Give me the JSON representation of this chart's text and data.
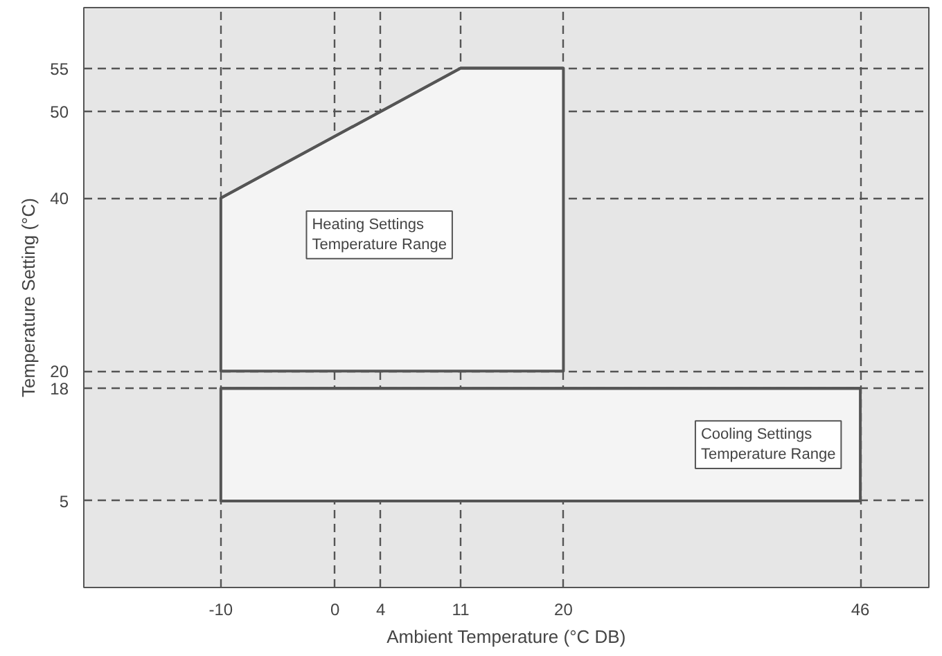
{
  "chart_data": {
    "type": "line",
    "xlabel": "Ambient Temperature (°C DB)",
    "ylabel": "Temperature Setting (°C)",
    "series": [
      {
        "x": [
          -10,
          11,
          20
        ],
        "values": [
          40,
          55,
          55
        ],
        "lower": [
          20,
          20,
          20
        ],
        "upper": [
          40,
          55,
          55
        ],
        "color": "#555555"
      },
      {
        "x": [
          -10,
          46
        ],
        "values": [
          18,
          18
        ],
        "lower": [
          5,
          5
        ],
        "upper": [
          18,
          18
        ],
        "color": "#555555"
      }
    ],
    "xlim": [
      -22,
      52
    ],
    "ylim": [
      -5,
      62
    ],
    "xticks": [
      -10,
      0,
      4,
      11,
      20,
      46
    ],
    "yticks": [
      5,
      18,
      20,
      40,
      50,
      55
    ],
    "grid": true,
    "annotations": [
      "Heating Settings\nTemperature Range",
      "Cooling Settings\nTemperature Range"
    ]
  }
}
